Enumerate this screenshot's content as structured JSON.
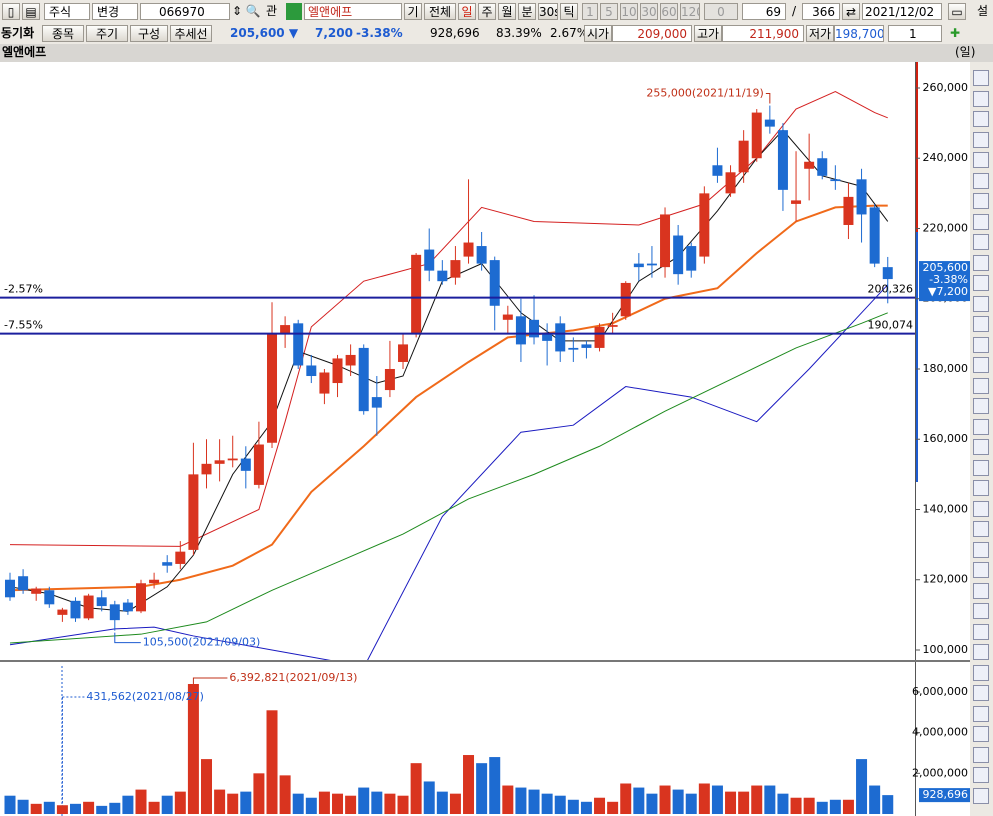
{
  "toolbar": {
    "row1": [
      "주식",
      "변경",
      "066970",
      "관",
      "엘앤에프",
      "기",
      "전체",
      "일",
      "주",
      "월",
      "분",
      "30s",
      "틱",
      "1",
      "5",
      "10",
      "30",
      "60",
      "120",
      "0",
      "69",
      "/",
      "366",
      "2021/12/02",
      "설"
    ],
    "row2": [
      "동기화",
      "종목",
      "주기",
      "구성",
      "추세선",
      "205,600 ▼",
      "7,200",
      "-3.38%",
      "928,696",
      "83.39%",
      "2.67%",
      "시가",
      "209,000",
      "고가",
      "211,900",
      "저가",
      "198,700",
      "1"
    ]
  },
  "chart_data": [
    {
      "type": "candlestick",
      "title": "엘앤에프",
      "period": "(일)",
      "open": [
        120000,
        121000,
        116000,
        117000,
        110000,
        114000,
        109000,
        115000,
        113000,
        113500,
        111000,
        119000,
        125000,
        124500,
        128500,
        150000,
        153000,
        154000,
        154500,
        147000,
        159000,
        190000,
        193000,
        181000,
        173000,
        176000,
        181000,
        186000,
        172000,
        174000,
        182000,
        190000,
        214000,
        208000,
        206000,
        212000,
        215000,
        211000,
        194000,
        195000,
        194000,
        190000,
        193000,
        186000,
        187000,
        186000,
        192000,
        195000,
        210000,
        210000,
        209000,
        218000,
        215000,
        212000,
        238000,
        230000,
        236000,
        240000,
        251000,
        248000,
        227000,
        237000,
        240000,
        234000,
        221000,
        234000,
        226000,
        209000
      ],
      "high": [
        122000,
        123000,
        118000,
        118000,
        112000,
        115000,
        116000,
        117000,
        114000,
        114500,
        120000,
        122000,
        127000,
        131000,
        159000,
        160000,
        160000,
        161000,
        158000,
        165000,
        199000,
        195000,
        194000,
        184000,
        180000,
        184000,
        187000,
        187000,
        178000,
        188000,
        190000,
        213000,
        220000,
        211000,
        215000,
        234000,
        219000,
        212000,
        198000,
        200000,
        201000,
        193000,
        195000,
        189000,
        188000,
        193000,
        196000,
        205000,
        213000,
        215000,
        226000,
        221000,
        216000,
        232000,
        243000,
        238000,
        248000,
        254000,
        255000,
        250000,
        242000,
        247000,
        242000,
        238000,
        233000,
        237000,
        227000,
        211900
      ],
      "low": [
        114000,
        116000,
        114000,
        112000,
        108000,
        108000,
        108500,
        111000,
        105500,
        110000,
        110500,
        117500,
        122000,
        123000,
        127000,
        146000,
        148000,
        152000,
        146000,
        146000,
        157500,
        186000,
        180000,
        176000,
        170000,
        172000,
        178000,
        167000,
        161000,
        172000,
        180000,
        189000,
        205000,
        204000,
        204000,
        210000,
        208000,
        191000,
        190000,
        182000,
        187000,
        181000,
        182000,
        182000,
        183000,
        185000,
        190000,
        194000,
        205000,
        206000,
        206000,
        204000,
        206000,
        210000,
        233000,
        229000,
        233000,
        239000,
        247000,
        225000,
        222000,
        228000,
        234000,
        231000,
        217000,
        216000,
        209000,
        198700
      ],
      "close": [
        115000,
        117000,
        117500,
        113000,
        111500,
        109000,
        115500,
        112500,
        108500,
        111000,
        119000,
        120000,
        124000,
        128000,
        150000,
        153000,
        154000,
        154500,
        151000,
        158500,
        190000,
        192500,
        181000,
        178000,
        179000,
        183000,
        184000,
        168000,
        169000,
        180000,
        187000,
        212500,
        208000,
        205000,
        211000,
        216000,
        210000,
        198000,
        195500,
        187000,
        189000,
        188000,
        185000,
        185500,
        186000,
        192000,
        192500,
        204500,
        209000,
        209500,
        224000,
        207000,
        208000,
        230000,
        235000,
        236000,
        245000,
        253000,
        249000,
        231000,
        228000,
        239000,
        235000,
        233500,
        229000,
        224000,
        210000,
        205600
      ],
      "up_color": "#d9341f",
      "down_color": "#1d6bd1",
      "xlim": [
        -0.763,
        69.08
      ],
      "ylim": [
        97150,
        267400
      ],
      "yticks": [
        {
          "value": 100000,
          "label": "100,000"
        },
        {
          "value": 120000,
          "label": "120,000"
        },
        {
          "value": 140000,
          "label": "140,000"
        },
        {
          "value": 160000,
          "label": "160,000"
        },
        {
          "value": 180000,
          "label": "180,000"
        },
        {
          "value": 200000,
          "label": "200,000"
        },
        {
          "value": 220000,
          "label": "220,000"
        },
        {
          "value": 240000,
          "label": "240,000"
        },
        {
          "value": 260000,
          "label": "260,000"
        }
      ],
      "lines": [
        {
          "color": "#d42020",
          "x": [
            0,
            13,
            19,
            21,
            23,
            27,
            32,
            36,
            40,
            48,
            53,
            57,
            60,
            63,
            66,
            67
          ],
          "values": [
            130000,
            129500,
            140000,
            165000,
            192000,
            205000,
            210000,
            226000,
            222000,
            221000,
            227000,
            240000,
            254000,
            259000,
            253000,
            251500
          ]
        },
        {
          "color": "#1a1ac0",
          "x": [
            0,
            8,
            11,
            14,
            20,
            26,
            27,
            33,
            39,
            43,
            47,
            52,
            57,
            61,
            65,
            67
          ],
          "values": [
            101500,
            106000,
            106500,
            104000,
            100000,
            96000,
            95000,
            138000,
            162000,
            164000,
            175000,
            172000,
            165000,
            180000,
            196000,
            204000
          ]
        },
        {
          "color": "#f06a1a",
          "x": [
            0,
            10,
            13,
            17,
            20,
            23,
            27,
            31,
            35,
            38,
            43,
            46,
            50,
            54,
            57,
            60,
            63,
            66,
            67
          ],
          "values": [
            117000,
            118000,
            120000,
            124000,
            130000,
            145000,
            158000,
            172000,
            182000,
            189000,
            191000,
            193000,
            200000,
            203000,
            213000,
            222000,
            226000,
            226500,
            226500
          ]
        },
        {
          "color": "#1d8a1d",
          "x": [
            0,
            10,
            15,
            20,
            25,
            30,
            35,
            40,
            45,
            50,
            55,
            60,
            65,
            67
          ],
          "values": [
            102000,
            104500,
            108000,
            117000,
            125000,
            133000,
            143000,
            150000,
            158000,
            168000,
            177000,
            186000,
            193000,
            196000
          ]
        },
        {
          "color": "#111111",
          "x": [
            0,
            3,
            6,
            9,
            12,
            14,
            17,
            20,
            22,
            25,
            28,
            30,
            33,
            36,
            39,
            42,
            45,
            48,
            51,
            54,
            57,
            59,
            62,
            65,
            67
          ],
          "values": [
            118000,
            116000,
            112000,
            111000,
            118000,
            127000,
            150000,
            165000,
            185000,
            181000,
            176000,
            178000,
            205000,
            210000,
            196000,
            188000,
            188000,
            205000,
            212000,
            225000,
            240000,
            248000,
            235000,
            232000,
            222000
          ]
        }
      ],
      "levels": [
        {
          "label": "-2.57%",
          "value": 200326,
          "value_label": "200,326",
          "color": "#1b1f9e"
        },
        {
          "label": "-7.55%",
          "value": 190074,
          "value_label": "190,074",
          "color": "#1b1f9e"
        }
      ],
      "high_annotation": {
        "label": "255,000(2021/11/19)",
        "value": 255000
      },
      "low_annotation": {
        "label": "105,500(2021/09/03)",
        "value": 105500
      },
      "last": {
        "value": 205600,
        "label": "205,600",
        "change_pct": "-3.38%",
        "change": "▼7,200"
      }
    },
    {
      "type": "bar",
      "values": [
        900000,
        700000,
        500000,
        600000,
        431562,
        500000,
        600000,
        400000,
        550000,
        900000,
        1200000,
        600000,
        900000,
        1100000,
        6392821,
        2700000,
        1200000,
        1000000,
        1100000,
        2000000,
        5100000,
        1900000,
        1000000,
        800000,
        1100000,
        1000000,
        900000,
        1300000,
        1100000,
        1000000,
        900000,
        2500000,
        1600000,
        1100000,
        1000000,
        2900000,
        2500000,
        2800000,
        1400000,
        1300000,
        1200000,
        1000000,
        900000,
        700000,
        600000,
        800000,
        600000,
        1500000,
        1300000,
        1000000,
        1400000,
        1200000,
        1000000,
        1500000,
        1400000,
        1100000,
        1100000,
        1400000,
        1400000,
        1000000,
        800000,
        800000,
        600000,
        700000,
        700000,
        2700000,
        1400000,
        928696
      ],
      "ylim": [
        0,
        7475000
      ],
      "yticks": [
        {
          "value": 2000000,
          "label": "2,000,000"
        },
        {
          "value": 4000000,
          "label": "4,000,000"
        },
        {
          "value": 6000000,
          "label": "6,000,000"
        }
      ],
      "peak_annotation": {
        "label": "6,392,821(2021/09/13)",
        "value": 6392821
      },
      "dashed_annotation": {
        "label": "431,562(2021/08/27)",
        "value": 431562
      },
      "last": {
        "value": 928696,
        "label": "928,696"
      }
    }
  ]
}
